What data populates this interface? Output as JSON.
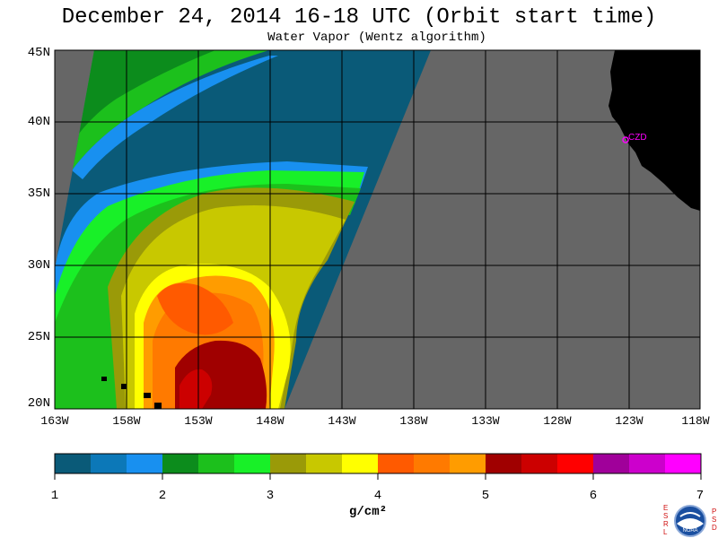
{
  "header": {
    "title": "December 24, 2014  16-18 UTC  (Orbit start time)",
    "subtitle": "Water Vapor (Wentz algorithm)"
  },
  "map": {
    "lat_labels": [
      "45N",
      "40N",
      "35N",
      "30N",
      "25N",
      "20N"
    ],
    "lon_labels": [
      "163W",
      "158W",
      "153W",
      "148W",
      "143W",
      "138W",
      "133W",
      "128W",
      "123W",
      "118W"
    ],
    "station_label": "CZD",
    "colors": {
      "land": "#000000",
      "no_data": "#666666",
      "grid": "#000000",
      "station": "#ff00ff"
    }
  },
  "colorbar": {
    "tick_labels": [
      "1",
      "2",
      "3",
      "4",
      "5",
      "6",
      "7"
    ],
    "units_label": "g/cm²",
    "colors": [
      "#0a5a78",
      "#0c78b8",
      "#1890f0",
      "#0c8c1c",
      "#1cc01c",
      "#18f028",
      "#9a9a08",
      "#c8c800",
      "#ffff00",
      "#ff5a00",
      "#ff7a00",
      "#ff9c00",
      "#a00000",
      "#cc0000",
      "#ff0000",
      "#a0009a",
      "#cc00cc",
      "#ff00ff"
    ]
  },
  "logo": {
    "left_letters": [
      "E",
      "S",
      "R",
      "L"
    ],
    "right_letters": [
      "P",
      "S",
      "D"
    ],
    "name": "NOAA"
  }
}
